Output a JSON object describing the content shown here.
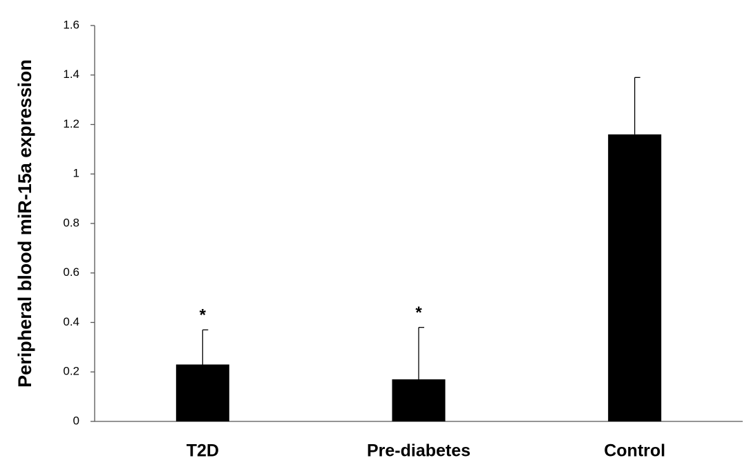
{
  "chart_data": {
    "type": "bar",
    "y_label": "Peripheral blood miR-15a expression",
    "categories": [
      "T2D",
      "Pre-diabetes",
      "Control"
    ],
    "values": [
      0.23,
      0.17,
      1.16
    ],
    "errors": [
      0.14,
      0.21,
      0.23
    ],
    "annotations": [
      "*",
      "*",
      null
    ],
    "color": "#000000",
    "ylim": [
      0,
      1.6
    ],
    "yticks": [
      0,
      0.2,
      0.4,
      0.6,
      0.8,
      1,
      1.2,
      1.4,
      1.6
    ],
    "grid": false
  }
}
